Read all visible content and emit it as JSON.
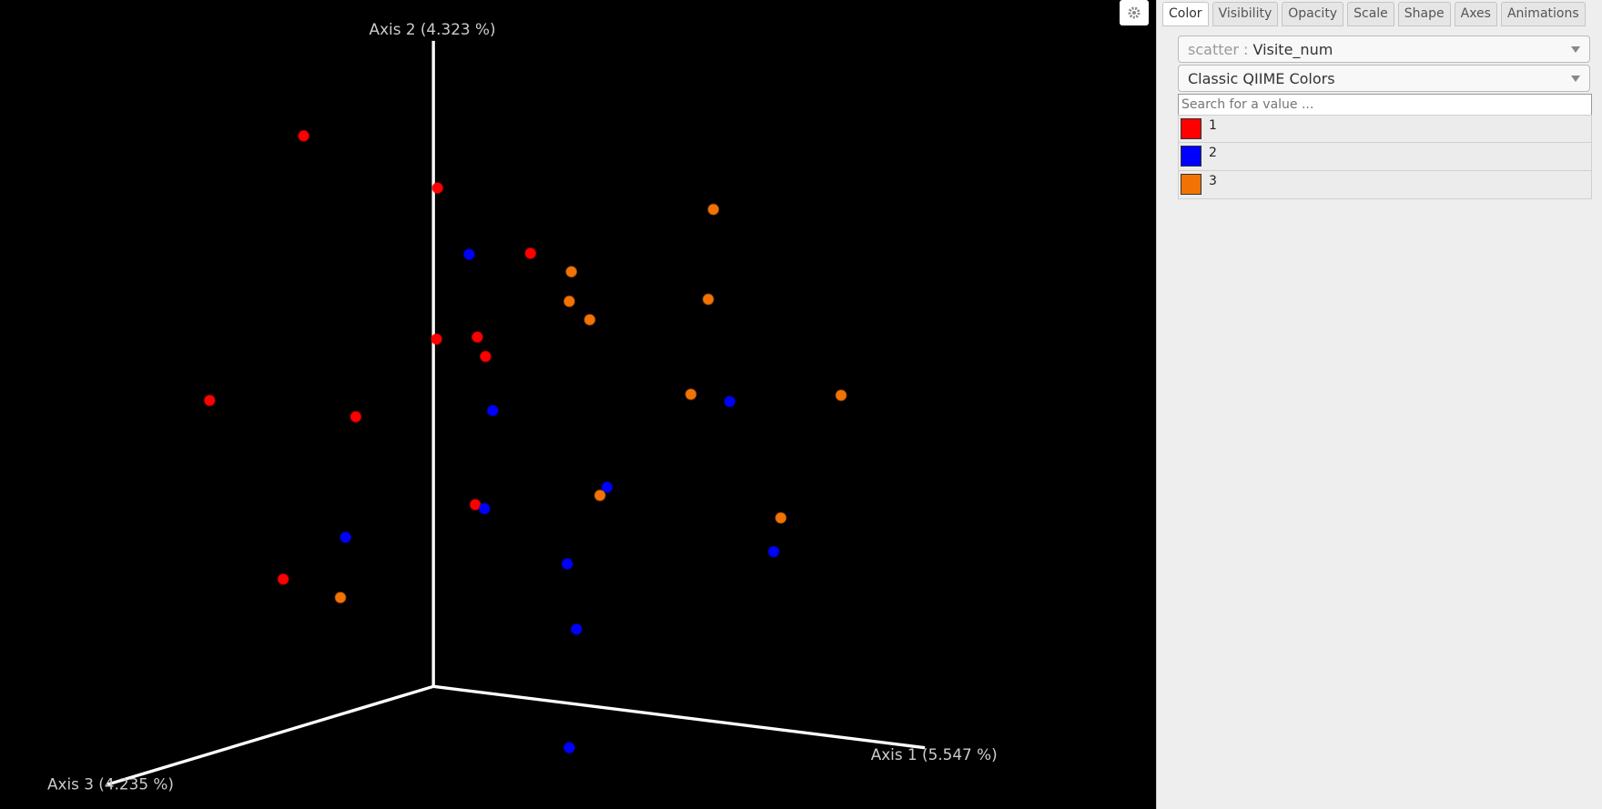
{
  "viewer": {
    "axes": [
      {
        "label": "Axis 1 (5.547 %)"
      },
      {
        "label": "Axis 2 (4.323 %)"
      },
      {
        "label": "Axis 3 (4.235 %)"
      }
    ]
  },
  "tabs": [
    "Color",
    "Visibility",
    "Opacity",
    "Scale",
    "Shape",
    "Axes",
    "Animations"
  ],
  "color_panel": {
    "scatter_label": "scatter :",
    "metadata": "Visite_num",
    "colormap": "Classic QIIME Colors",
    "search_placeholder": "Search for a value ...",
    "legend": [
      {
        "label": "1",
        "color": "#ff0000"
      },
      {
        "label": "2",
        "color": "#0000ff"
      },
      {
        "label": "3",
        "color": "#f27304"
      }
    ]
  }
}
